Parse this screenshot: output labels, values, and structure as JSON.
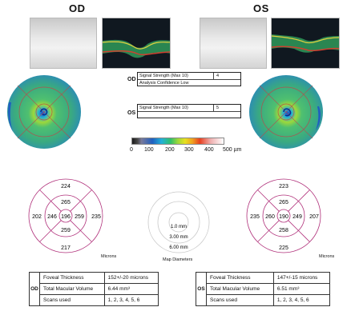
{
  "od": {
    "title": "OD",
    "signal": {
      "label": "Signal Strength (Max 10)",
      "value": "4",
      "confidence": "Analysis Confidence Low"
    },
    "grid": {
      "outer_top": "224",
      "outer_left": "202",
      "outer_right": "235",
      "outer_bottom": "217",
      "inner_top": "265",
      "inner_left": "246",
      "center": "196",
      "inner_right": "259",
      "inner_bottom": "259"
    },
    "table": {
      "rows": [
        {
          "label": "Foveal Thickness",
          "value": "152+/-20 microns"
        },
        {
          "label": "Total Macular Volume",
          "value": "6.44 mm³"
        },
        {
          "label": "Scans used",
          "value": "1, 2, 3, 4, 5, 6"
        }
      ]
    }
  },
  "os": {
    "title": "OS",
    "signal": {
      "label": "Signal Strength (Max 10)",
      "value": "5"
    },
    "grid": {
      "outer_top": "223",
      "outer_left": "235",
      "outer_right": "207",
      "outer_bottom": "225",
      "inner_top": "265",
      "inner_left": "260",
      "center": "190",
      "inner_right": "249",
      "inner_bottom": "258"
    },
    "table": {
      "rows": [
        {
          "label": "Foveal Thickness",
          "value": "147+/-15 microns"
        },
        {
          "label": "Total Macular Volume",
          "value": "6.51 mm³"
        },
        {
          "label": "Scans used",
          "value": "1, 2, 3, 4, 5, 6"
        }
      ]
    }
  },
  "scale": {
    "ticks": [
      "0",
      "100",
      "200",
      "300",
      "400",
      "500 µm"
    ]
  },
  "microns_label": "Microns",
  "map_diameters": {
    "inner": "1.0 mm",
    "middle": "3.00 mm",
    "outer": "6.00 mm",
    "caption": "Map Diameters"
  },
  "colors": {
    "grid_stroke": "#b0307a",
    "map_green": "#3fbf6a",
    "map_blue": "#1f5fbf"
  }
}
